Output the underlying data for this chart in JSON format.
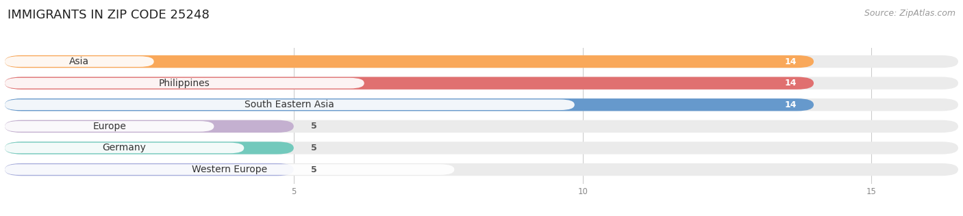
{
  "title": "IMMIGRANTS IN ZIP CODE 25248",
  "source": "Source: ZipAtlas.com",
  "categories": [
    "Asia",
    "Philippines",
    "South Eastern Asia",
    "Europe",
    "Germany",
    "Western Europe"
  ],
  "values": [
    14,
    14,
    14,
    5,
    5,
    5
  ],
  "bar_colors": [
    "#F9A85A",
    "#E07070",
    "#6699CC",
    "#C4B0D0",
    "#72C9BC",
    "#A8AEDD"
  ],
  "bar_bg_color": "#EFEFEF",
  "xlim_max": 16.5,
  "xticks": [
    5,
    10,
    15
  ],
  "fig_bg_color": "#FFFFFF",
  "title_fontsize": 13,
  "source_fontsize": 9,
  "label_fontsize": 10,
  "value_fontsize": 9,
  "bar_height": 0.58,
  "bar_gap": 0.42
}
